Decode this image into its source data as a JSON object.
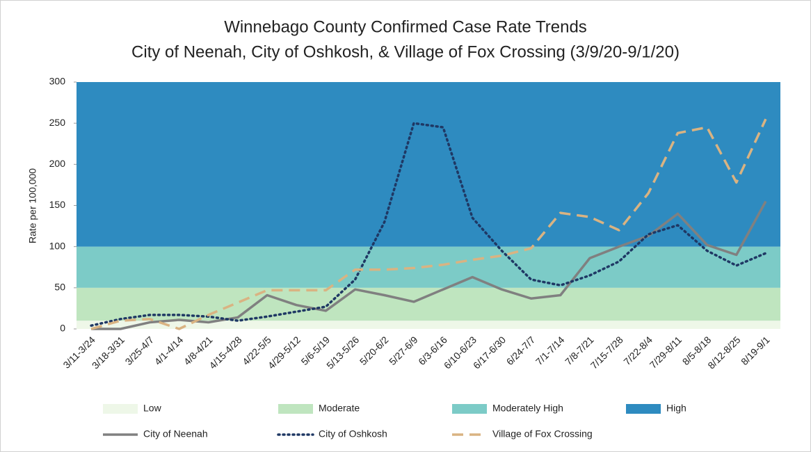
{
  "chart_data": {
    "type": "line",
    "title": "Winnebago County Confirmed Case Rate Trends",
    "subtitle": "City of Neenah, City of Oshkosh, & Village of Fox Crossing (3/9/20-9/1/20)",
    "y_label": "Rate per 100,000",
    "categories": [
      "3/11-3/24",
      "3/18-3/31",
      "3/25-4/7",
      "4/1-4/14",
      "4/8-4/21",
      "4/15-4/28",
      "4/22-5/5",
      "4/29-5/12",
      "5/6-5/19",
      "5/13-5/26",
      "5/20-6/2",
      "5/27-6/9",
      "6/3-6/16",
      "6/10-6/23",
      "6/17-6/30",
      "6/24-7/7",
      "7/1-7/14",
      "7/8-7/21",
      "7/15-7/28",
      "7/22-8/4",
      "7/29-8/11",
      "8/5-8/18",
      "8/12-8/25",
      "8/19-9/1"
    ],
    "bands": [
      {
        "name": "Low",
        "color": "#eef7e8",
        "from": 0,
        "to": 10
      },
      {
        "name": "Moderate",
        "color": "#bfe5bf",
        "from": 10,
        "to": 50
      },
      {
        "name": "Moderately High",
        "color": "#7ccbc7",
        "from": 50,
        "to": 100
      },
      {
        "name": "High",
        "color": "#2e8bc0",
        "from": 100,
        "to": 300
      }
    ],
    "series": [
      {
        "name": "City of Neenah",
        "color": "#808080",
        "dash": "solid",
        "values": [
          0,
          0,
          8,
          11,
          8,
          14,
          41,
          29,
          22,
          48,
          41,
          33,
          48,
          63,
          48,
          37,
          41,
          86,
          100,
          113,
          140,
          102,
          90,
          155
        ]
      },
      {
        "name": "City of Oshkosh",
        "color": "#1f3864",
        "dash": "dotted",
        "values": [
          4,
          12,
          17,
          17,
          15,
          10,
          15,
          21,
          27,
          60,
          130,
          250,
          245,
          135,
          95,
          60,
          53,
          65,
          82,
          115,
          126,
          95,
          77,
          92
        ]
      },
      {
        "name": "Village of Fox Crossing",
        "color": "#d9b382",
        "dash": "dashed",
        "values": [
          0,
          10,
          12,
          0,
          17,
          32,
          47,
          47,
          47,
          72,
          72,
          74,
          78,
          84,
          89,
          98,
          141,
          136,
          120,
          165,
          238,
          245,
          178,
          255
        ]
      }
    ],
    "ylim": [
      0,
      300
    ],
    "yticks": [
      0,
      50,
      100,
      150,
      200,
      250,
      300
    ]
  }
}
